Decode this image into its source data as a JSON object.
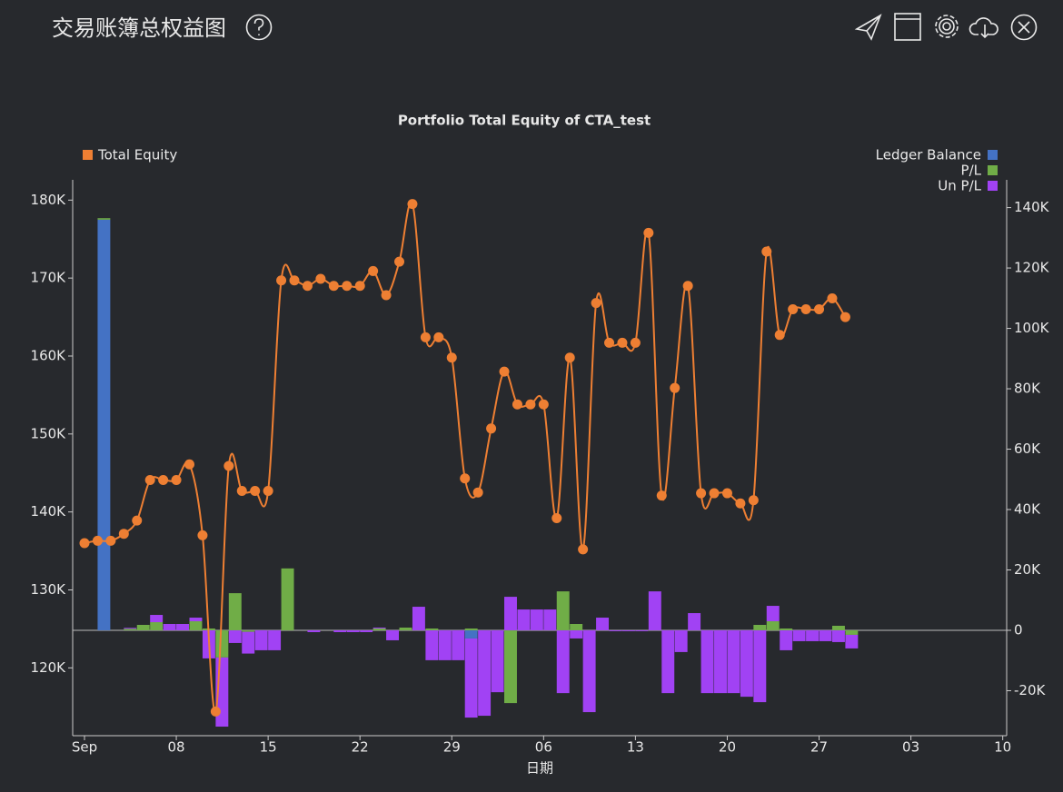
{
  "header": {
    "title": "交易账簿总权益图"
  },
  "chart_data": {
    "type": "combo",
    "title": "Portfolio Total Equity of CTA_test",
    "x_label": "日期",
    "x": [
      1,
      2,
      3,
      4,
      5,
      6,
      7,
      8,
      9,
      10,
      11,
      12,
      13,
      14,
      15,
      16,
      17,
      18,
      19,
      20,
      21,
      22,
      23,
      24,
      25,
      26,
      27,
      28,
      29,
      30,
      31,
      32,
      33,
      34,
      35,
      36,
      37,
      38,
      39,
      40,
      41,
      42,
      43,
      44,
      45,
      46,
      47,
      48,
      49,
      50,
      51,
      52,
      53,
      54,
      55,
      56,
      57,
      58,
      59
    ],
    "xlim": [
      0.1,
      71.3
    ],
    "xticks": [
      {
        "value": 1,
        "label": "Sep"
      },
      {
        "value": 8,
        "label": "08"
      },
      15,
      22,
      29,
      {
        "value": 36,
        "label": "06"
      },
      {
        "value": 43,
        "label": "13"
      },
      {
        "value": 50,
        "label": "20"
      },
      {
        "value": 57,
        "label": "27"
      },
      {
        "value": 64,
        "label": "03"
      },
      {
        "value": 71,
        "label": "10"
      }
    ],
    "ylim": [
      111300,
      182600
    ],
    "yticks": [
      {
        "value": 120000,
        "label": "120K"
      },
      {
        "value": 130000,
        "label": "130K"
      },
      {
        "value": 140000,
        "label": "140K"
      },
      {
        "value": 150000,
        "label": "150K"
      },
      {
        "value": 160000,
        "label": "160K"
      },
      {
        "value": 170000,
        "label": "170K"
      },
      {
        "value": 180000,
        "label": "180K"
      }
    ],
    "y2lim": [
      -34900,
      149200
    ],
    "y2ticks": [
      {
        "value": -20000,
        "label": "-20K"
      },
      0,
      {
        "value": 20000,
        "label": "20K"
      },
      {
        "value": 40000,
        "label": "40K"
      },
      {
        "value": 60000,
        "label": "60K"
      },
      {
        "value": 80000,
        "label": "80K"
      },
      {
        "value": 100000,
        "label": "100K"
      },
      {
        "value": 120000,
        "label": "120K"
      },
      {
        "value": 140000,
        "label": "140K"
      }
    ],
    "series": [
      {
        "name": "Total Equity",
        "type": "line",
        "color": "#ee7f33",
        "legend": "left",
        "values": [
          136000,
          136300,
          136300,
          137200,
          138900,
          144100,
          144100,
          144100,
          146100,
          137000,
          114400,
          145900,
          142700,
          142700,
          142700,
          169700,
          169700,
          169000,
          169900,
          169000,
          169000,
          169000,
          170900,
          167800,
          172100,
          179500,
          162400,
          162400,
          159800,
          144300,
          142500,
          150700,
          158000,
          153800,
          153800,
          153800,
          139200,
          159800,
          135200,
          166800,
          161700,
          161700,
          161700,
          175800,
          142100,
          155900,
          169000,
          142400,
          142400,
          142400,
          141100,
          141500,
          173400,
          162700,
          166000,
          166000,
          166000,
          167400,
          165000
        ]
      },
      {
        "name": "Ledger Balance",
        "type": "bar",
        "axis": "y2",
        "color": "#4472c4",
        "legend": "right",
        "values": [
          0,
          136000,
          0,
          0,
          0,
          0,
          0,
          0,
          0,
          0,
          0,
          0,
          0,
          0,
          0,
          0,
          0,
          0,
          0,
          0,
          0,
          0,
          0,
          0,
          0,
          0,
          0,
          0,
          0,
          -2700,
          0,
          0,
          0,
          0,
          0,
          0,
          0,
          0,
          0,
          0,
          0,
          0,
          0,
          0,
          0,
          0,
          0,
          0,
          0,
          0,
          0,
          0,
          0,
          0,
          0,
          0,
          0,
          0,
          0
        ]
      },
      {
        "name": "P/L",
        "type": "bar",
        "axis": "y2",
        "color": "#70ad47",
        "legend": "right",
        "values": [
          0,
          500,
          0,
          500,
          1800,
          2700,
          0,
          0,
          3000,
          600,
          -9000,
          12300,
          -500,
          0,
          0,
          20500,
          0,
          0,
          0,
          0,
          0,
          0,
          600,
          0,
          900,
          0,
          600,
          0,
          0,
          600,
          0,
          0,
          -24100,
          0,
          0,
          0,
          12900,
          2100,
          0,
          0,
          0,
          0,
          0,
          0,
          0,
          0,
          0,
          0,
          0,
          0,
          0,
          1800,
          3000,
          600,
          0,
          0,
          0,
          1500,
          -1500
        ]
      },
      {
        "name": "Un P/L",
        "type": "bar",
        "axis": "y2",
        "color": "#a142f4",
        "legend": "right",
        "values": [
          0,
          0,
          0,
          300,
          0,
          2400,
          2100,
          2100,
          1200,
          -9300,
          -22900,
          -4200,
          -7200,
          -6600,
          -6600,
          0,
          0,
          -600,
          0,
          -600,
          -600,
          -600,
          300,
          -3300,
          0,
          7800,
          -9900,
          -9900,
          -9900,
          -26200,
          -28300,
          -20500,
          11100,
          6900,
          6900,
          6900,
          -20800,
          -2700,
          -27100,
          4200,
          -300,
          -300,
          -300,
          12900,
          -20800,
          -7200,
          5700,
          -20800,
          -20800,
          -20800,
          -22000,
          -23800,
          5100,
          -6600,
          -3600,
          -3600,
          -3600,
          -3900,
          -4500
        ]
      }
    ]
  }
}
